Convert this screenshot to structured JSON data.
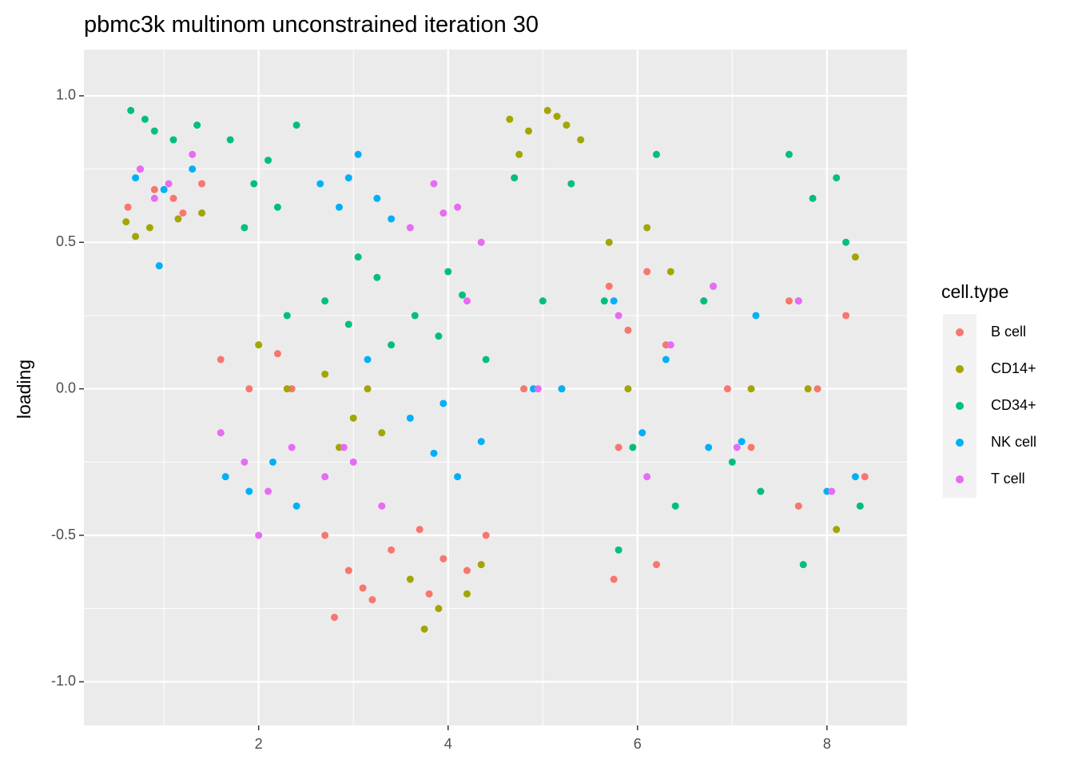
{
  "chart_data": {
    "type": "scatter",
    "title": "pbmc3k multinom unconstrained iteration 30",
    "y_label": "loading",
    "legend_title": "cell.type",
    "legend": "right",
    "grid": true,
    "xlim": [
      0.155,
      8.845
    ],
    "ylim": [
      -1.149,
      1.158
    ],
    "xticks": [
      2,
      4,
      6,
      8
    ],
    "yticks": [
      {
        "value": -1,
        "label": "-1.0"
      },
      {
        "value": -0.5,
        "label": "-0.5"
      },
      {
        "value": 0,
        "label": "0.0"
      },
      {
        "value": 0.5,
        "label": "0.5"
      },
      {
        "value": 1,
        "label": "1.0"
      }
    ],
    "x_minor_breaks": [
      1,
      3,
      5,
      7
    ],
    "y_minor_breaks": [
      -0.75,
      -0.25,
      0.25,
      0.75
    ],
    "series": [
      {
        "name": "B cell",
        "color": "#F8766D",
        "x": [
          0.62,
          0.9,
          1.2,
          1.4,
          0.75,
          1.1,
          1.6,
          1.9,
          2.2,
          2.35,
          2.7,
          2.95,
          3.2,
          3.4,
          2.8,
          3.1,
          3.7,
          3.95,
          4.2,
          4.4,
          3.8,
          4.8,
          5.2,
          5.7,
          5.9,
          6.1,
          6.3,
          5.8,
          6.2,
          5.75,
          6.7,
          6.95,
          7.2,
          7.6,
          7.9,
          8.2,
          8.4,
          7.7
        ],
        "values": [
          0.62,
          0.68,
          0.6,
          0.7,
          0.75,
          0.65,
          0.1,
          0.0,
          0.12,
          0.0,
          -0.5,
          -0.62,
          -0.72,
          -0.55,
          -0.78,
          -0.68,
          -0.48,
          -0.58,
          -0.62,
          -0.5,
          -0.7,
          0.0,
          0.0,
          0.35,
          0.2,
          0.4,
          0.15,
          -0.2,
          -0.6,
          -0.65,
          0.3,
          0.0,
          -0.2,
          0.3,
          0.0,
          0.25,
          -0.3,
          -0.4
        ]
      },
      {
        "name": "CD14+",
        "color": "#A3A500",
        "x": [
          0.6,
          0.85,
          1.15,
          1.4,
          0.7,
          2.0,
          2.3,
          2.7,
          3.0,
          3.3,
          2.85,
          3.15,
          3.6,
          3.9,
          4.2,
          4.35,
          3.75,
          4.65,
          4.85,
          5.05,
          5.25,
          5.4,
          4.75,
          5.15,
          5.7,
          6.1,
          6.35,
          5.9,
          6.8,
          7.2,
          7.8,
          8.3,
          8.1
        ],
        "values": [
          0.57,
          0.55,
          0.58,
          0.6,
          0.52,
          0.15,
          0.0,
          0.05,
          -0.1,
          -0.15,
          -0.2,
          0.0,
          -0.65,
          -0.75,
          -0.7,
          -0.6,
          -0.82,
          0.92,
          0.88,
          0.95,
          0.9,
          0.85,
          0.8,
          0.93,
          0.5,
          0.55,
          0.4,
          0.0,
          0.35,
          0.0,
          0.0,
          0.45,
          -0.48
        ]
      },
      {
        "name": "CD34+",
        "color": "#00BF7D",
        "x": [
          0.65,
          0.9,
          1.1,
          1.35,
          0.8,
          1.7,
          1.95,
          2.2,
          2.4,
          1.85,
          2.1,
          2.3,
          2.7,
          2.95,
          3.25,
          3.4,
          3.05,
          3.65,
          3.9,
          4.15,
          4.4,
          4.0,
          4.7,
          5.0,
          5.3,
          5.65,
          5.95,
          6.2,
          6.4,
          5.8,
          6.7,
          7.0,
          7.3,
          7.6,
          7.85,
          8.1,
          8.35,
          7.75,
          8.2
        ],
        "values": [
          0.95,
          0.88,
          0.85,
          0.9,
          0.92,
          0.85,
          0.7,
          0.62,
          0.9,
          0.55,
          0.78,
          0.25,
          0.3,
          0.22,
          0.38,
          0.15,
          0.45,
          0.25,
          0.18,
          0.32,
          0.1,
          0.4,
          0.72,
          0.3,
          0.7,
          0.3,
          -0.2,
          0.8,
          -0.4,
          -0.55,
          0.3,
          -0.25,
          -0.35,
          0.8,
          0.65,
          0.72,
          -0.4,
          -0.6,
          0.5
        ]
      },
      {
        "name": "NK cell",
        "color": "#00B0F6",
        "x": [
          0.7,
          1.0,
          1.3,
          0.95,
          1.65,
          1.9,
          2.15,
          2.4,
          2.65,
          2.85,
          3.05,
          3.25,
          3.4,
          2.95,
          3.15,
          3.6,
          3.85,
          4.1,
          4.35,
          3.95,
          4.9,
          5.2,
          5.75,
          6.05,
          6.3,
          6.75,
          7.1,
          7.25,
          7.7,
          8.0,
          8.3
        ],
        "values": [
          0.72,
          0.68,
          0.75,
          0.42,
          -0.3,
          -0.35,
          -0.25,
          -0.4,
          0.7,
          0.62,
          0.8,
          0.65,
          0.58,
          0.72,
          0.1,
          -0.1,
          -0.22,
          -0.3,
          -0.18,
          -0.05,
          0.0,
          0.0,
          0.3,
          -0.15,
          0.1,
          -0.2,
          -0.18,
          0.25,
          0.3,
          -0.35,
          -0.3
        ]
      },
      {
        "name": "T cell",
        "color": "#E76BF3",
        "x": [
          0.75,
          1.05,
          1.3,
          0.9,
          1.6,
          1.85,
          2.1,
          2.35,
          2.0,
          2.7,
          3.0,
          3.3,
          2.9,
          3.6,
          3.85,
          4.1,
          4.35,
          3.95,
          4.2,
          4.95,
          5.8,
          6.1,
          6.35,
          6.8,
          7.05,
          7.7,
          8.05
        ],
        "values": [
          0.75,
          0.7,
          0.8,
          0.65,
          -0.15,
          -0.25,
          -0.35,
          -0.2,
          -0.5,
          -0.3,
          -0.25,
          -0.4,
          -0.2,
          0.55,
          0.7,
          0.62,
          0.5,
          0.6,
          0.3,
          0.0,
          0.25,
          -0.3,
          0.15,
          0.35,
          -0.2,
          0.3,
          -0.35
        ]
      }
    ]
  }
}
